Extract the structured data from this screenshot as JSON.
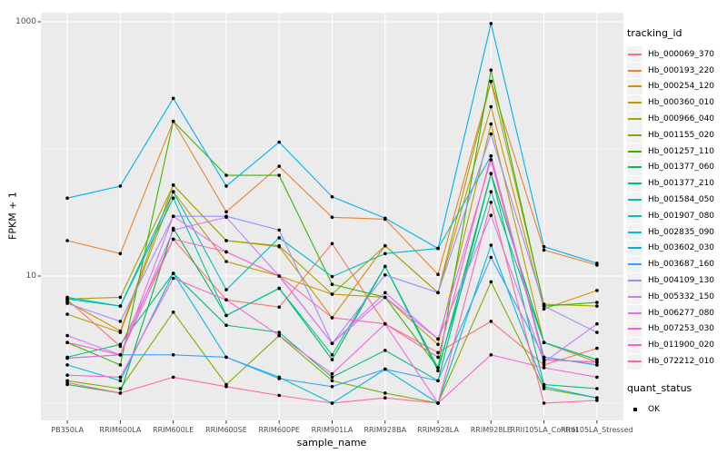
{
  "figure": {
    "background": "#FFFFFF",
    "panel_background": "#EBEBEB",
    "grid_color": "#FFFFFF",
    "tick_color": "#333333",
    "axis_text_color": "#4D4D4D",
    "point_color": "#000000"
  },
  "chart_data": {
    "type": "line",
    "title": "",
    "xlabel": "sample_name",
    "ylabel": "FPKM + 1",
    "y_scale": "log10",
    "ylim": [
      0.72,
      1150
    ],
    "y_major_ticks": [
      {
        "value": 10,
        "label": "10"
      },
      {
        "value": 1000,
        "label": "1000"
      }
    ],
    "y_minor_gridlines": [
      1,
      100
    ],
    "grid": "on",
    "legend_position": "right",
    "categories": [
      "PB350LA",
      "RRIM600LA",
      "RRIM600LE",
      "RRIM600SE",
      "RRIM600PE",
      "RRIM901LA",
      "RRIM928BA",
      "RRIM928LA",
      "RRIM928LE",
      "RRII105LA_Control",
      "RRII105LA_Stressed"
    ],
    "series": [
      {
        "name": "Hb_000069_370",
        "color": "#F8766D",
        "values": [
          6.5,
          2.8,
          19.5,
          6.5,
          5.7,
          18,
          4.2,
          2.5,
          4.4,
          2.0,
          2.7
        ]
      },
      {
        "name": "Hb_000193_220",
        "color": "#EA8331",
        "values": [
          19,
          15,
          165,
          32,
          73,
          29,
          28,
          10.3,
          340,
          16,
          12.2
        ]
      },
      {
        "name": "Hb_000254_120",
        "color": "#D89000",
        "values": [
          6.3,
          3.7,
          52,
          19,
          17,
          4.7,
          17.3,
          7.4,
          215,
          5.5,
          7.7
        ]
      },
      {
        "name": "Hb_000360_010",
        "color": "#C09B00",
        "values": [
          5.0,
          3.6,
          46,
          13,
          10,
          7.2,
          6.8,
          2.9,
          157,
          3.0,
          2.1
        ]
      },
      {
        "name": "Hb_000966_040",
        "color": "#A3A500",
        "values": [
          6.6,
          6.8,
          52,
          19,
          17.3,
          7.2,
          17.3,
          7.4,
          340,
          6.0,
          5.8
        ]
      },
      {
        "name": "Hb_001155_020",
        "color": "#7CAE00",
        "values": [
          1.5,
          1.3,
          5.2,
          1.4,
          3.4,
          1.5,
          1.2,
          1.0,
          9,
          1.3,
          1.1
        ]
      },
      {
        "name": "Hb_001257_110",
        "color": "#39B600",
        "values": [
          3.0,
          2.0,
          165,
          62,
          62,
          8.6,
          6.8,
          1.9,
          417,
          5.8,
          6.2
        ]
      },
      {
        "name": "Hb_001377_060",
        "color": "#00BB4E",
        "values": [
          1.4,
          1.2,
          23.7,
          4.9,
          8.0,
          2.2,
          11.9,
          1.8,
          64,
          3.0,
          2.2
        ]
      },
      {
        "name": "Hb_001377_210",
        "color": "#00BF7D",
        "values": [
          2.3,
          2.9,
          10.5,
          4.1,
          3.6,
          1.6,
          2.6,
          1.5,
          64,
          1.4,
          1.3
        ]
      },
      {
        "name": "Hb_001584_050",
        "color": "#00C1A3",
        "values": [
          6.8,
          5.8,
          41,
          4.9,
          8.0,
          2.4,
          11.9,
          1.9,
          46,
          3.0,
          2.2
        ]
      },
      {
        "name": "Hb_001907_080",
        "color": "#00BFC4",
        "values": [
          6.6,
          5.8,
          46,
          7.8,
          20,
          9.9,
          15,
          16.5,
          88,
          2.3,
          2.0
        ]
      },
      {
        "name": "Hb_002835_090",
        "color": "#00BAE0",
        "values": [
          2.0,
          1.5,
          10.5,
          2.3,
          1.6,
          1.0,
          1.85,
          1.0,
          17.5,
          1.35,
          1.1
        ]
      },
      {
        "name": "Hb_003602_030",
        "color": "#00B0F6",
        "values": [
          41,
          51,
          250,
          51,
          113,
          42,
          28.5,
          16.5,
          970,
          17,
          12.6
        ]
      },
      {
        "name": "Hb_003687_160",
        "color": "#35A2FF",
        "values": [
          2.26,
          2.4,
          2.4,
          2.3,
          1.56,
          1.35,
          1.85,
          1.5,
          14,
          2.3,
          2.0
        ]
      },
      {
        "name": "Hb_004109_130",
        "color": "#9590FF",
        "values": [
          6.1,
          4.4,
          29.5,
          29.5,
          23,
          2.95,
          10.2,
          7.4,
          131,
          5.8,
          3.6
        ]
      },
      {
        "name": "Hb_005332_150",
        "color": "#C77CFF",
        "values": [
          3.4,
          2.4,
          23,
          29,
          10,
          2.95,
          7.4,
          3.2,
          30,
          2.1,
          4.2
        ]
      },
      {
        "name": "Hb_006277_080",
        "color": "#E76BF3",
        "values": [
          2.26,
          2.4,
          29.5,
          15.5,
          10,
          2.95,
          6.8,
          3.2,
          82,
          2.2,
          2.1
        ]
      },
      {
        "name": "Hb_007253_030",
        "color": "#FA62DB",
        "values": [
          1.66,
          1.6,
          9.6,
          6.5,
          3.4,
          1.7,
          4.2,
          1.0,
          2.4,
          1.9,
          1.6
        ]
      },
      {
        "name": "Hb_011900_020",
        "color": "#FF62BC",
        "values": [
          3.0,
          2.4,
          19.5,
          15.5,
          10,
          4.7,
          4.2,
          2.3,
          88,
          2.2,
          2.1
        ]
      },
      {
        "name": "Hb_072212_010",
        "color": "#FF6A98",
        "values": [
          1.45,
          1.2,
          1.6,
          1.35,
          1.15,
          1.0,
          1.1,
          1.0,
          38,
          1.0,
          1.05
        ]
      }
    ],
    "legend": {
      "title": "tracking_id"
    },
    "legend2": {
      "title": "quant_status",
      "items": [
        {
          "label": "OK",
          "marker": "black-square"
        }
      ]
    }
  }
}
